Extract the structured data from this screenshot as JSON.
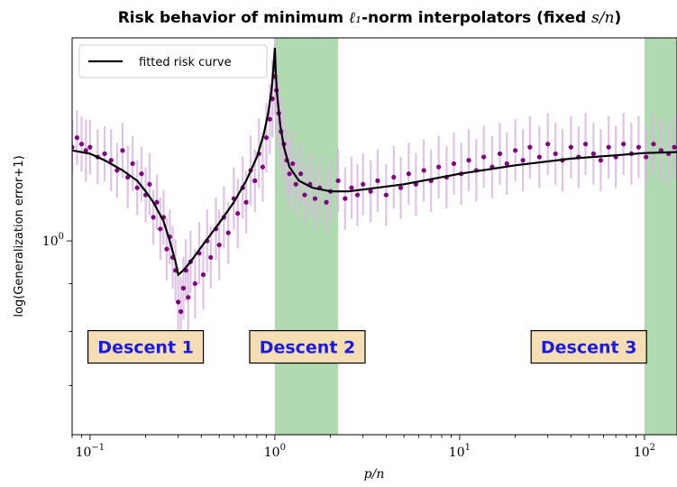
{
  "chart_data": {
    "type": "scatter",
    "title_main": "Risk behavior of minimum ",
    "title_math": "ℓ₁",
    "title_mid": "-norm interpolators (fixed ",
    "title_ratio": "s/n",
    "title_end": ")",
    "xlabel": "p/n",
    "ylabel": "log(Generalization error+1)",
    "x_scale": "log",
    "y_scale": "log",
    "xlim": [
      0.08,
      150
    ],
    "ylim": [
      0.62,
      1.65
    ],
    "x_ticks": [
      {
        "value": 0.1,
        "base": "10",
        "exp": "−1"
      },
      {
        "value": 1,
        "base": "10",
        "exp": "0"
      },
      {
        "value": 10,
        "base": "10",
        "exp": "1"
      },
      {
        "value": 100,
        "base": "10",
        "exp": "2"
      }
    ],
    "y_ticks": [
      {
        "value": 1,
        "base": "10",
        "exp": "0"
      }
    ],
    "legend": {
      "location": "top-left",
      "entries": [
        {
          "label": "fitted risk curve",
          "color": "#000000"
        }
      ]
    },
    "shaded_regions": [
      {
        "x0": 1.0,
        "x1": 2.2,
        "color": "#8fca8f"
      },
      {
        "x0": 100,
        "x1": 150,
        "color": "#8fca8f"
      }
    ],
    "region_labels": [
      {
        "text": "Descent 1",
        "x": 0.2,
        "y": 0.77
      },
      {
        "text": "Descent 2",
        "x": 1.5,
        "y": 0.77
      },
      {
        "text": "Descent 3",
        "x": 50,
        "y": 0.77
      }
    ],
    "series": [
      {
        "name": "fitted risk curve",
        "style": "line",
        "color": "#000000",
        "points": [
          [
            0.08,
            1.25
          ],
          [
            0.1,
            1.24
          ],
          [
            0.12,
            1.22
          ],
          [
            0.15,
            1.19
          ],
          [
            0.18,
            1.16
          ],
          [
            0.2,
            1.13
          ],
          [
            0.22,
            1.1
          ],
          [
            0.25,
            1.05
          ],
          [
            0.27,
            1.0
          ],
          [
            0.29,
            0.95
          ],
          [
            0.3,
            0.92
          ],
          [
            0.32,
            0.93
          ],
          [
            0.35,
            0.95
          ],
          [
            0.4,
            0.985
          ],
          [
            0.5,
            1.045
          ],
          [
            0.6,
            1.1
          ],
          [
            0.7,
            1.16
          ],
          [
            0.8,
            1.23
          ],
          [
            0.87,
            1.3
          ],
          [
            0.92,
            1.37
          ],
          [
            0.96,
            1.45
          ],
          [
            0.98,
            1.52
          ],
          [
            1.0,
            1.61
          ],
          [
            1.01,
            1.52
          ],
          [
            1.03,
            1.43
          ],
          [
            1.07,
            1.33
          ],
          [
            1.12,
            1.26
          ],
          [
            1.2,
            1.2
          ],
          [
            1.35,
            1.16
          ],
          [
            1.6,
            1.14
          ],
          [
            2.0,
            1.13
          ],
          [
            2.5,
            1.13
          ],
          [
            3,
            1.135
          ],
          [
            5,
            1.15
          ],
          [
            10,
            1.18
          ],
          [
            20,
            1.205
          ],
          [
            40,
            1.225
          ],
          [
            70,
            1.235
          ],
          [
            100,
            1.242
          ],
          [
            150,
            1.245
          ]
        ]
      },
      {
        "name": "",
        "style": "points-with-error-bars",
        "color": "#800080",
        "errorbar_color": "#d9b8e0",
        "points": [
          [
            0.08,
            1.26,
            0.07
          ],
          [
            0.085,
            1.29,
            0.07
          ],
          [
            0.09,
            1.27,
            0.07
          ],
          [
            0.095,
            1.25,
            0.08
          ],
          [
            0.1,
            1.26,
            0.07
          ],
          [
            0.11,
            1.23,
            0.07
          ],
          [
            0.12,
            1.24,
            0.07
          ],
          [
            0.13,
            1.22,
            0.08
          ],
          [
            0.14,
            1.19,
            0.07
          ],
          [
            0.15,
            1.25,
            0.07
          ],
          [
            0.16,
            1.17,
            0.08
          ],
          [
            0.17,
            1.21,
            0.07
          ],
          [
            0.18,
            1.14,
            0.07
          ],
          [
            0.19,
            1.18,
            0.07
          ],
          [
            0.2,
            1.12,
            0.07
          ],
          [
            0.21,
            1.15,
            0.08
          ],
          [
            0.22,
            1.06,
            0.07
          ],
          [
            0.23,
            1.1,
            0.07
          ],
          [
            0.24,
            1.03,
            0.08
          ],
          [
            0.25,
            1.06,
            0.07
          ],
          [
            0.26,
            0.98,
            0.08
          ],
          [
            0.27,
            1.01,
            0.07
          ],
          [
            0.28,
            0.96,
            0.08
          ],
          [
            0.29,
            0.93,
            0.08
          ],
          [
            0.3,
            0.86,
            0.09
          ],
          [
            0.31,
            0.84,
            0.09
          ],
          [
            0.32,
            0.89,
            0.08
          ],
          [
            0.33,
            0.93,
            0.08
          ],
          [
            0.34,
            0.87,
            0.09
          ],
          [
            0.35,
            0.95,
            0.08
          ],
          [
            0.37,
            0.9,
            0.09
          ],
          [
            0.39,
            0.97,
            0.08
          ],
          [
            0.41,
            0.92,
            0.09
          ],
          [
            0.43,
            1.0,
            0.08
          ],
          [
            0.45,
            0.96,
            0.08
          ],
          [
            0.48,
            1.03,
            0.08
          ],
          [
            0.5,
            0.99,
            0.09
          ],
          [
            0.53,
            1.06,
            0.08
          ],
          [
            0.56,
            1.02,
            0.08
          ],
          [
            0.6,
            1.11,
            0.08
          ],
          [
            0.63,
            1.07,
            0.09
          ],
          [
            0.67,
            1.14,
            0.08
          ],
          [
            0.7,
            1.1,
            0.08
          ],
          [
            0.74,
            1.19,
            0.09
          ],
          [
            0.78,
            1.16,
            0.08
          ],
          [
            0.82,
            1.24,
            0.09
          ],
          [
            0.86,
            1.2,
            0.09
          ],
          [
            0.9,
            1.29,
            0.09
          ],
          [
            0.94,
            1.35,
            0.09
          ],
          [
            0.97,
            1.42,
            0.1
          ],
          [
            1.0,
            1.5,
            0.1
          ],
          [
            1.02,
            1.45,
            0.1
          ],
          [
            1.05,
            1.37,
            0.09
          ],
          [
            1.08,
            1.31,
            0.09
          ],
          [
            1.12,
            1.27,
            0.09
          ],
          [
            1.16,
            1.22,
            0.09
          ],
          [
            1.2,
            1.18,
            0.09
          ],
          [
            1.25,
            1.21,
            0.08
          ],
          [
            1.3,
            1.15,
            0.08
          ],
          [
            1.38,
            1.18,
            0.08
          ],
          [
            1.45,
            1.12,
            0.08
          ],
          [
            1.55,
            1.15,
            0.08
          ],
          [
            1.65,
            1.11,
            0.08
          ],
          [
            1.75,
            1.14,
            0.08
          ],
          [
            1.9,
            1.1,
            0.08
          ],
          [
            2.0,
            1.13,
            0.08
          ],
          [
            2.2,
            1.16,
            0.08
          ],
          [
            2.4,
            1.11,
            0.08
          ],
          [
            2.6,
            1.14,
            0.08
          ],
          [
            2.8,
            1.12,
            0.08
          ],
          [
            3.0,
            1.15,
            0.08
          ],
          [
            3.3,
            1.13,
            0.08
          ],
          [
            3.6,
            1.16,
            0.08
          ],
          [
            4.0,
            1.12,
            0.08
          ],
          [
            4.4,
            1.17,
            0.08
          ],
          [
            4.8,
            1.14,
            0.08
          ],
          [
            5.3,
            1.18,
            0.08
          ],
          [
            5.8,
            1.15,
            0.08
          ],
          [
            6.4,
            1.19,
            0.08
          ],
          [
            7.0,
            1.16,
            0.08
          ],
          [
            7.7,
            1.2,
            0.08
          ],
          [
            8.5,
            1.17,
            0.08
          ],
          [
            9.3,
            1.21,
            0.08
          ],
          [
            10.2,
            1.18,
            0.08
          ],
          [
            11.2,
            1.22,
            0.08
          ],
          [
            12.3,
            1.19,
            0.08
          ],
          [
            13.5,
            1.23,
            0.08
          ],
          [
            15,
            1.2,
            0.08
          ],
          [
            16.5,
            1.24,
            0.08
          ],
          [
            18,
            1.21,
            0.08
          ],
          [
            20,
            1.25,
            0.08
          ],
          [
            22,
            1.22,
            0.08
          ],
          [
            24,
            1.26,
            0.08
          ],
          [
            27,
            1.23,
            0.08
          ],
          [
            30,
            1.27,
            0.08
          ],
          [
            33,
            1.24,
            0.08
          ],
          [
            36,
            1.22,
            0.08
          ],
          [
            40,
            1.26,
            0.08
          ],
          [
            44,
            1.23,
            0.08
          ],
          [
            48,
            1.27,
            0.08
          ],
          [
            53,
            1.24,
            0.08
          ],
          [
            58,
            1.22,
            0.08
          ],
          [
            64,
            1.26,
            0.08
          ],
          [
            70,
            1.23,
            0.08
          ],
          [
            77,
            1.27,
            0.08
          ],
          [
            85,
            1.24,
            0.08
          ],
          [
            93,
            1.26,
            0.08
          ],
          [
            102,
            1.23,
            0.08
          ],
          [
            112,
            1.27,
            0.08
          ],
          [
            123,
            1.25,
            0.08
          ],
          [
            135,
            1.24,
            0.08
          ],
          [
            145,
            1.26,
            0.08
          ]
        ]
      }
    ]
  }
}
